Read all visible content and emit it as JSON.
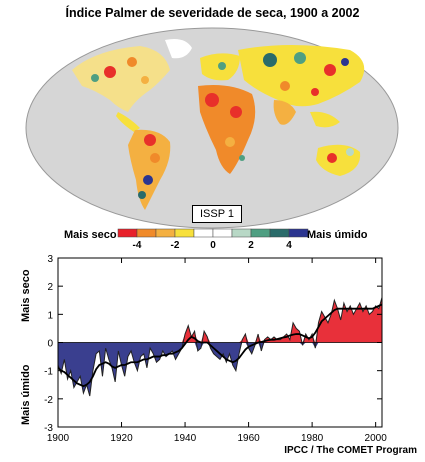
{
  "title": "Índice Palmer de severidade de seca, 1900 a 2002",
  "map": {
    "label": "ISSP 1",
    "legend_left": "Mais seco",
    "legend_right": "Mais úmido",
    "legend_ticks": [
      "-4",
      "-2",
      "0",
      "2",
      "4"
    ],
    "legend_colors": [
      "#e8202a",
      "#f08a2a",
      "#f4b041",
      "#f7e03c",
      "#ffffff",
      "#ffffff",
      "#b8d8c6",
      "#4f9f82",
      "#2a6b6a",
      "#2b3590"
    ]
  },
  "chart_data": {
    "type": "area",
    "title": "",
    "xlabel": "",
    "ylabel_top": "Mais seco",
    "ylabel_bottom": "Mais úmido",
    "xlim": [
      1900,
      2002
    ],
    "ylim": [
      -3,
      3
    ],
    "xticks": [
      1900,
      1920,
      1940,
      1960,
      1980,
      2000
    ],
    "yticks": [
      -3,
      -2,
      -1,
      0,
      1,
      2,
      3
    ],
    "positive_color": "#e8303a",
    "negative_color": "#3a3f8f",
    "x": [
      1900,
      1901,
      1902,
      1903,
      1904,
      1905,
      1906,
      1907,
      1908,
      1909,
      1910,
      1911,
      1912,
      1913,
      1914,
      1915,
      1916,
      1917,
      1918,
      1919,
      1920,
      1921,
      1922,
      1923,
      1924,
      1925,
      1926,
      1927,
      1928,
      1929,
      1930,
      1931,
      1932,
      1933,
      1934,
      1935,
      1936,
      1937,
      1938,
      1939,
      1940,
      1941,
      1942,
      1943,
      1944,
      1945,
      1946,
      1947,
      1948,
      1949,
      1950,
      1951,
      1952,
      1953,
      1954,
      1955,
      1956,
      1957,
      1958,
      1959,
      1960,
      1961,
      1962,
      1963,
      1964,
      1965,
      1966,
      1967,
      1968,
      1969,
      1970,
      1971,
      1972,
      1973,
      1974,
      1975,
      1976,
      1977,
      1978,
      1979,
      1980,
      1981,
      1982,
      1983,
      1984,
      1985,
      1986,
      1987,
      1988,
      1989,
      1990,
      1991,
      1992,
      1993,
      1994,
      1995,
      1996,
      1997,
      1998,
      1999,
      2000,
      2001,
      2002
    ],
    "values": [
      -0.8,
      -1.1,
      -0.6,
      -1.3,
      -1.0,
      -1.6,
      -1.4,
      -1.2,
      -1.8,
      -1.5,
      -1.9,
      -1.0,
      -0.4,
      -0.3,
      -1.2,
      -0.2,
      -0.6,
      -0.9,
      -1.4,
      -0.3,
      -0.8,
      -1.2,
      -0.5,
      -0.3,
      -0.7,
      -1.0,
      -0.5,
      -0.4,
      -0.9,
      -0.2,
      -0.4,
      -0.7,
      -0.6,
      -0.3,
      -0.5,
      -0.4,
      -0.3,
      -0.6,
      -0.4,
      -0.2,
      0.3,
      0.6,
      0.2,
      0.4,
      -0.3,
      -0.2,
      0.4,
      0.2,
      -0.2,
      -0.4,
      -0.5,
      -0.6,
      -0.4,
      -0.7,
      -0.4,
      -0.8,
      -1.0,
      -0.4,
      0.1,
      0.3,
      -0.2,
      -0.4,
      -0.1,
      0.3,
      -0.3,
      0.1,
      0.2,
      0.1,
      0.2,
      0.1,
      0.1,
      0.2,
      0.3,
      0.1,
      0.7,
      0.5,
      0.4,
      -0.1,
      0.3,
      0.1,
      0.3,
      -0.2,
      0.7,
      1.1,
      0.9,
      0.7,
      1.0,
      1.5,
      1.2,
      0.8,
      1.4,
      1.1,
      1.3,
      1.0,
      1.2,
      1.4,
      1.1,
      1.3,
      1.0,
      1.1,
      1.3,
      1.2,
      1.6
    ],
    "smooth": [
      -0.9,
      -1.0,
      -1.05,
      -1.15,
      -1.25,
      -1.35,
      -1.45,
      -1.5,
      -1.55,
      -1.5,
      -1.4,
      -1.2,
      -0.95,
      -0.8,
      -0.75,
      -0.7,
      -0.75,
      -0.85,
      -0.9,
      -0.85,
      -0.8,
      -0.8,
      -0.75,
      -0.7,
      -0.7,
      -0.7,
      -0.65,
      -0.6,
      -0.6,
      -0.55,
      -0.5,
      -0.5,
      -0.5,
      -0.45,
      -0.45,
      -0.4,
      -0.4,
      -0.35,
      -0.3,
      -0.2,
      -0.05,
      0.1,
      0.2,
      0.15,
      0.05,
      0.0,
      0.0,
      0.0,
      -0.1,
      -0.2,
      -0.3,
      -0.4,
      -0.5,
      -0.6,
      -0.65,
      -0.7,
      -0.65,
      -0.55,
      -0.4,
      -0.25,
      -0.15,
      -0.1,
      -0.05,
      0.0,
      0.02,
      0.05,
      0.08,
      0.1,
      0.1,
      0.12,
      0.15,
      0.18,
      0.2,
      0.25,
      0.28,
      0.3,
      0.3,
      0.25,
      0.2,
      0.15,
      0.2,
      0.35,
      0.55,
      0.75,
      0.85,
      0.95,
      1.05,
      1.15,
      1.2,
      1.2,
      1.2,
      1.2,
      1.2,
      1.2,
      1.2,
      1.2,
      1.2,
      1.2,
      1.2,
      1.2,
      1.25,
      1.3,
      1.35
    ]
  },
  "credit": "IPCC / The COMET Program"
}
